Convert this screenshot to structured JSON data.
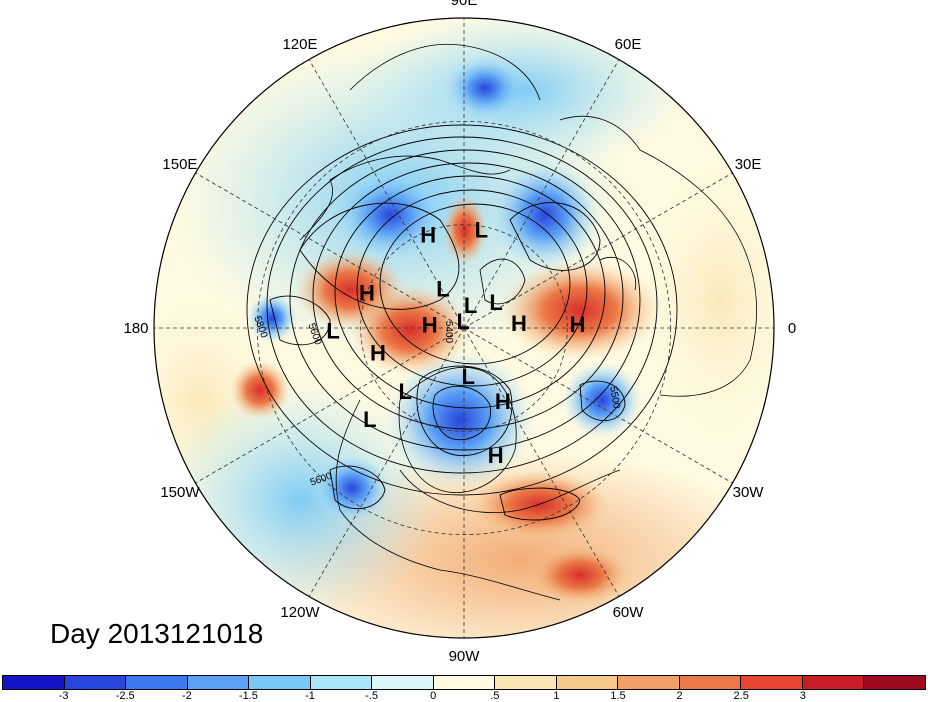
{
  "title": "Day 2013121018",
  "longitude_labels": [
    {
      "text": "90E",
      "lon": 90
    },
    {
      "text": "60E",
      "lon": 60
    },
    {
      "text": "30E",
      "lon": 30
    },
    {
      "text": "0",
      "lon": 0
    },
    {
      "text": "30W",
      "lon": -30
    },
    {
      "text": "60W",
      "lon": -60
    },
    {
      "text": "90W",
      "lon": -90
    },
    {
      "text": "120W",
      "lon": -120
    },
    {
      "text": "150W",
      "lon": -150
    },
    {
      "text": "180",
      "lon": 180
    },
    {
      "text": "150E",
      "lon": 150
    },
    {
      "text": "120E",
      "lon": 120
    }
  ],
  "pressure_centers": [
    {
      "type": "H",
      "lon": 111,
      "colat": 29
    },
    {
      "type": "L",
      "lon": 80,
      "colat": 29
    },
    {
      "type": "L",
      "lon": 39,
      "colat": 12
    },
    {
      "type": "L",
      "lon": 118,
      "colat": 13
    },
    {
      "type": "L",
      "lon": 74,
      "colat": 7
    },
    {
      "type": "L",
      "lon": 96,
      "colat": 2
    },
    {
      "type": "H",
      "lon": 5,
      "colat": 16
    },
    {
      "type": "H",
      "lon": 174,
      "colat": 10
    },
    {
      "type": "H",
      "lon": 2,
      "colat": 33
    },
    {
      "type": "H",
      "lon": 160,
      "colat": 30
    },
    {
      "type": "L",
      "lon": 181,
      "colat": 38
    },
    {
      "type": "H",
      "lon": -164,
      "colat": 26
    },
    {
      "type": "L",
      "lon": -85,
      "colat": 14
    },
    {
      "type": "L",
      "lon": -133,
      "colat": 25
    },
    {
      "type": "L",
      "lon": -136,
      "colat": 38
    },
    {
      "type": "H",
      "lon": -62,
      "colat": 24
    },
    {
      "type": "H",
      "lon": -76,
      "colat": 38
    }
  ],
  "contour_labels": [
    "5800",
    "5600",
    "5400",
    "5600",
    "5500"
  ],
  "colorbar": {
    "colors": [
      "#1414c8",
      "#2846dc",
      "#3c78f0",
      "#5aa0f5",
      "#78c8f5",
      "#aae6fa",
      "#dcf5fa",
      "#fffae1",
      "#fae6b4",
      "#f5c88c",
      "#f0a064",
      "#eb7846",
      "#e64632",
      "#c81e28",
      "#a00a1e"
    ],
    "labels": [
      "-3",
      "-2.5",
      "-2",
      "-1.5",
      "-1",
      "-.5",
      "0",
      ".5",
      "1",
      "1.5",
      "2",
      "2.5",
      "3"
    ]
  }
}
